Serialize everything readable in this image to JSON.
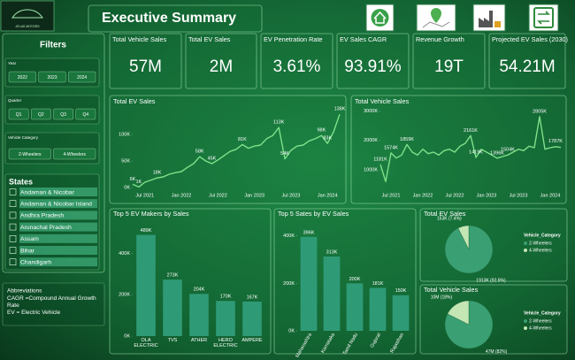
{
  "header": {
    "logo": "ATLAS MOTORS",
    "title": "Executive Summary"
  },
  "filters": {
    "title": "Filters",
    "groups": [
      {
        "label": "Year",
        "options": [
          "2022",
          "2023",
          "2024"
        ]
      },
      {
        "label": "Quarter",
        "options": [
          "Q1",
          "Q2",
          "Q3",
          "Q4"
        ]
      },
      {
        "label": "Vehicle Category",
        "options": [
          "2-Wheelers",
          "4-Wheelers"
        ]
      }
    ],
    "states": {
      "title": "States",
      "options": [
        "Andaman & Nicobar",
        "Andaman & Nicobar Island",
        "Andhra Pradesh",
        "Arunachal Pradesh",
        "Assam",
        "Bihar",
        "Chandigarh"
      ]
    }
  },
  "abbreviations": {
    "title": "Abbreviations",
    "lines": [
      "CAGR =Compound Annual Growth Rate",
      "EV = Electric Vehicle"
    ]
  },
  "kpis": [
    {
      "label": "Total Vehicle Sales",
      "value": "57M"
    },
    {
      "label": "Total EV Sales",
      "value": "2M"
    },
    {
      "label": "EV Penetration Rate",
      "value": "3.61%"
    },
    {
      "label": "EV Sales CAGR",
      "value": "93.91%"
    },
    {
      "label": "Revenue Growth",
      "value": "19T"
    },
    {
      "label": "Projected EV Sales (2030)",
      "value": "54.21M"
    }
  ],
  "chart_data": [
    {
      "type": "line",
      "title": "Total EV Sales",
      "color": "#7fe08a",
      "categories": [
        null,
        null,
        "Jul 2021",
        null,
        null,
        null,
        null,
        null,
        "Jan 2022",
        null,
        null,
        null,
        null,
        null,
        "Jul 2022",
        null,
        null,
        null,
        null,
        null,
        "Jan 2023",
        null,
        null,
        null,
        null,
        null,
        "Jul 2023",
        null,
        null,
        null,
        null,
        null,
        "Jan 2024",
        null,
        null
      ],
      "values": [
        6000,
        1000,
        10000,
        14000,
        18000,
        20000,
        25000,
        28000,
        30000,
        38000,
        45000,
        58000,
        50000,
        45000,
        52000,
        60000,
        68000,
        72000,
        81000,
        74000,
        78000,
        80000,
        92000,
        98000,
        113000,
        54000,
        70000,
        78000,
        80000,
        88000,
        92000,
        98000,
        83000,
        105000,
        138000
      ],
      "value_labels": [
        "6K",
        "1K",
        null,
        null,
        "18K",
        null,
        null,
        null,
        null,
        null,
        null,
        "58K",
        null,
        "45K",
        null,
        null,
        null,
        null,
        "81K",
        null,
        null,
        null,
        null,
        null,
        "113K",
        "54K",
        null,
        null,
        null,
        null,
        null,
        "98K",
        "83K",
        null,
        "138K"
      ],
      "ylim": [
        0,
        150000
      ],
      "yticks": [
        {
          "value": 0,
          "label": "0K"
        },
        {
          "value": 50000,
          "label": "50K"
        },
        {
          "value": 100000,
          "label": "100K"
        }
      ]
    },
    {
      "type": "line",
      "title": "Total Vehicle Sales",
      "color": "#7fe08a",
      "categories": [
        null,
        null,
        "Jul 2021",
        null,
        null,
        null,
        null,
        null,
        "Jan 2022",
        null,
        null,
        null,
        null,
        null,
        "Jul 2022",
        null,
        null,
        null,
        null,
        null,
        "Jan 2023",
        null,
        null,
        null,
        null,
        null,
        "Jul 2023",
        null,
        null,
        null,
        null,
        null,
        "Jan 2024",
        null,
        null
      ],
      "values": [
        1181000,
        600000,
        1574000,
        1400000,
        1500000,
        1859000,
        1600000,
        1500000,
        1700000,
        1550000,
        1600000,
        1500000,
        1650000,
        1700000,
        1600000,
        1800000,
        1900000,
        2161000,
        1419000,
        1700000,
        1600000,
        1500000,
        1396000,
        1450000,
        1504000,
        1600000,
        1700000,
        1650000,
        1800000,
        1750000,
        2805000,
        1700000,
        1750000,
        1787000,
        1760000
      ],
      "value_labels": [
        "1181K",
        null,
        "1574K",
        null,
        null,
        "1859K",
        null,
        null,
        null,
        null,
        null,
        null,
        null,
        null,
        null,
        null,
        null,
        "2161K",
        "1419K",
        null,
        null,
        null,
        "1396K",
        null,
        "1504K",
        null,
        null,
        null,
        null,
        null,
        "2805K",
        null,
        null,
        "1787K",
        null
      ],
      "ylim": [
        400000,
        3100000
      ],
      "yticks": [
        {
          "value": 1000000,
          "label": "1000K"
        },
        {
          "value": 2000000,
          "label": "2000K"
        },
        {
          "value": 3000000,
          "label": "3000K"
        }
      ]
    },
    {
      "type": "bar",
      "title": "Top 5 EV Makers by Sales",
      "color": "#2f9a76",
      "categories": [
        "OLA ELECTRIC",
        "TVS",
        "ATHER",
        "HERO ELECTRIC",
        "AMPERE"
      ],
      "values": [
        489000,
        273000,
        204000,
        170000,
        167000
      ],
      "value_labels": [
        "489K",
        "273K",
        "204K",
        "170K",
        "167K"
      ],
      "ylim": [
        0,
        530000
      ],
      "yticks": [
        {
          "value": 0,
          "label": "0K"
        },
        {
          "value": 200000,
          "label": "200K"
        },
        {
          "value": 400000,
          "label": "400K"
        }
      ]
    },
    {
      "type": "bar",
      "title": "Top 5 Sates by EV Sales",
      "color": "#2f9a76",
      "rotated_labels": true,
      "categories": [
        "Maharashtra",
        "Karnataka",
        "Tamil Nadu",
        "Gujarat",
        "Rajasthan"
      ],
      "values": [
        396000,
        313000,
        200000,
        181000,
        150000
      ],
      "value_labels": [
        "396K",
        "313K",
        "200K",
        "181K",
        "150K"
      ],
      "ylim": [
        0,
        440000
      ],
      "yticks": [
        {
          "value": 0,
          "label": "0K"
        },
        {
          "value": 200000,
          "label": "200K"
        },
        {
          "value": 400000,
          "label": "400K"
        }
      ]
    },
    {
      "type": "pie",
      "title": "Total EV Sales",
      "legend_title": "Vehicle_Category",
      "categories": [
        "2-Wheelers",
        "4-Wheelers"
      ],
      "colors": [
        "#3a9f72",
        "#c4e6b4"
      ],
      "values": [
        1913000,
        153000
      ],
      "value_labels": [
        "1913K (92.6%)",
        "153K (7.4%)"
      ]
    },
    {
      "type": "pie",
      "title": "Total Vehicle Sales",
      "legend_title": "Vehicle_Category",
      "categories": [
        "2-Wheelers",
        "4-Wheelers"
      ],
      "colors": [
        "#3a9f72",
        "#c4e6b4"
      ],
      "values": [
        47000000,
        10000000
      ],
      "value_labels": [
        "47M (82%)",
        "10M (18%)"
      ]
    }
  ]
}
